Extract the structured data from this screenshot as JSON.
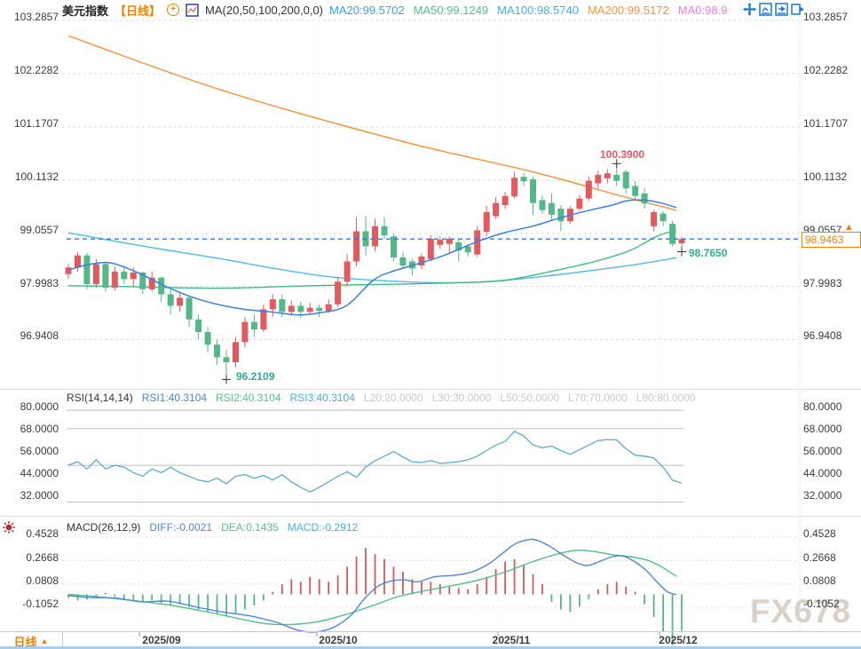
{
  "header": {
    "symbol": "美元指数",
    "period_tag": "【日线】",
    "ma_settings": "MA(20,50,100,200,0,0)",
    "ma_values": [
      {
        "text": "MA20:99.5702",
        "color": "#3ba0e8"
      },
      {
        "text": "MA50:99.1249",
        "color": "#52c48b"
      },
      {
        "text": "MA100:98.5740",
        "color": "#3fb3e3"
      },
      {
        "text": "MA200:99.5172",
        "color": "#f6953e"
      },
      {
        "text": "MA0:98.9",
        "color": "#ee7ce4"
      }
    ],
    "toolbar_icons": [
      "move-crosshair-icon",
      "zoom-in-range-icon",
      "zoom-out-range-icon",
      "reset-view-icon"
    ]
  },
  "main_axis": {
    "labels": [
      "103.2857",
      "102.2282",
      "101.1707",
      "100.1132",
      "99.0557",
      "97.9983",
      "96.9408"
    ]
  },
  "price_markers": {
    "high_label": "100.3900",
    "low_label": "96.2109",
    "last_low_label": "98.7650",
    "current_price": "98.9463"
  },
  "rsi_panel": {
    "title": "RSI(14,14,14)",
    "values": [
      {
        "text": "RSI1:40.3104",
        "color": "#4a86e0"
      },
      {
        "text": "RSI2:40.3104",
        "color": "#52c48b"
      },
      {
        "text": "RSI3:40.3104",
        "color": "#3fb3e3"
      },
      {
        "text": "L20:20.0000",
        "color": "#c9c9ce"
      },
      {
        "text": "L30:30.0000",
        "color": "#c9c9ce"
      },
      {
        "text": "L50:50.0000",
        "color": "#c9c9ce"
      },
      {
        "text": "L70:70.0000",
        "color": "#c9c9ce"
      },
      {
        "text": "L80:80.0000",
        "color": "#c9c9ce"
      }
    ],
    "axis_labels": [
      "80.0000",
      "68.0000",
      "56.0000",
      "44.0000",
      "32.0000"
    ]
  },
  "macd_panel": {
    "title": "MACD(26,12,9)",
    "values": [
      {
        "text": "DIFF:-0.0021",
        "color": "#4a86e0"
      },
      {
        "text": "DEA:0.1435",
        "color": "#52c48b"
      },
      {
        "text": "MACD:-0.2912",
        "color": "#3fb3e3"
      }
    ],
    "axis_labels": [
      "0.4528",
      "0.2668",
      "0.0808",
      "-0.1052"
    ]
  },
  "x_axis": {
    "labels": [
      "2025/09",
      "2025/10",
      "2025/11",
      "2025/12"
    ]
  },
  "bottom_tab": {
    "label": "日线",
    "arrow": "▲"
  },
  "watermark": "FX678",
  "colors": {
    "up": "#e25a5e",
    "down": "#54b886",
    "ma20": "#3e7fd9",
    "ma50": "#3dba85",
    "ma100": "#52b9e9",
    "ma200": "#f6953e",
    "current_line": "#2a7de1",
    "rsi_line": "#5aabd2",
    "diff_line": "#4f86d8",
    "dea_line": "#4fbd8c",
    "hist_up": "#d9565a",
    "hist_down": "#55b987",
    "accent_orange": "#f08200"
  },
  "chart_data": {
    "type": "candlestick",
    "title": "美元指数 日线 (US Dollar Index, daily)",
    "x_ticks": [
      "2025/09",
      "2025/10",
      "2025/11",
      "2025/12"
    ],
    "price_axis_ticks": [
      103.2857,
      102.2282,
      101.1707,
      100.1132,
      99.0557,
      97.9983,
      96.9408
    ],
    "price_range_shown": [
      96.2109,
      103.2857
    ],
    "high": 100.39,
    "low": 96.2109,
    "last_close": 98.9463,
    "last_low": 98.765,
    "high_index": 59,
    "low_index": 17,
    "candles_ohlc": [
      [
        98.25,
        98.45,
        98.15,
        98.38
      ],
      [
        98.38,
        98.68,
        98.3,
        98.62
      ],
      [
        98.62,
        98.67,
        97.95,
        98.05
      ],
      [
        98.05,
        98.55,
        97.98,
        98.45
      ],
      [
        98.45,
        98.5,
        97.9,
        97.98
      ],
      [
        97.98,
        98.4,
        97.92,
        98.3
      ],
      [
        98.3,
        98.42,
        98.05,
        98.15
      ],
      [
        98.15,
        98.38,
        98.0,
        98.28
      ],
      [
        98.28,
        98.3,
        97.85,
        97.95
      ],
      [
        97.95,
        98.3,
        97.9,
        98.18
      ],
      [
        98.18,
        98.2,
        97.7,
        97.85
      ],
      [
        97.85,
        97.95,
        97.45,
        97.62
      ],
      [
        97.62,
        97.9,
        97.5,
        97.78
      ],
      [
        97.78,
        97.8,
        97.2,
        97.35
      ],
      [
        97.35,
        97.45,
        96.95,
        97.1
      ],
      [
        97.1,
        97.2,
        96.7,
        96.85
      ],
      [
        96.85,
        96.95,
        96.45,
        96.6
      ],
      [
        96.6,
        96.75,
        96.2109,
        96.5
      ],
      [
        96.5,
        97.0,
        96.4,
        96.9
      ],
      [
        96.9,
        97.4,
        96.8,
        97.3
      ],
      [
        97.3,
        97.45,
        97.0,
        97.15
      ],
      [
        97.15,
        97.65,
        97.1,
        97.55
      ],
      [
        97.55,
        97.85,
        97.4,
        97.75
      ],
      [
        97.75,
        97.85,
        97.4,
        97.5
      ],
      [
        97.5,
        97.72,
        97.42,
        97.62
      ],
      [
        97.62,
        97.7,
        97.38,
        97.5
      ],
      [
        97.5,
        97.68,
        97.45,
        97.58
      ],
      [
        97.58,
        97.64,
        97.4,
        97.52
      ],
      [
        97.52,
        97.75,
        97.48,
        97.65
      ],
      [
        97.65,
        98.2,
        97.6,
        98.1
      ],
      [
        98.1,
        98.65,
        98.0,
        98.5
      ],
      [
        98.5,
        99.38,
        98.4,
        99.1
      ],
      [
        99.1,
        99.4,
        98.62,
        98.8
      ],
      [
        98.8,
        99.35,
        98.7,
        99.2
      ],
      [
        99.2,
        99.38,
        98.95,
        99.02
      ],
      [
        99.0,
        99.05,
        98.5,
        98.58
      ],
      [
        98.58,
        98.68,
        98.35,
        98.42
      ],
      [
        98.5,
        98.55,
        98.22,
        98.36
      ],
      [
        98.42,
        98.66,
        98.35,
        98.6
      ],
      [
        98.55,
        99.02,
        98.5,
        98.95
      ],
      [
        98.83,
        99.0,
        98.75,
        98.93
      ],
      [
        98.85,
        99.0,
        98.68,
        98.95
      ],
      [
        98.88,
        98.95,
        98.5,
        98.72
      ],
      [
        98.8,
        98.85,
        98.6,
        98.68
      ],
      [
        98.64,
        99.2,
        98.6,
        99.12
      ],
      [
        99.09,
        99.6,
        99.0,
        99.48
      ],
      [
        99.4,
        99.78,
        99.35,
        99.66
      ],
      [
        99.62,
        99.88,
        99.55,
        99.8
      ],
      [
        99.79,
        100.28,
        99.75,
        100.16
      ],
      [
        100.18,
        100.26,
        100.0,
        100.09
      ],
      [
        100.13,
        100.18,
        99.43,
        99.66
      ],
      [
        99.72,
        99.8,
        99.45,
        99.52
      ],
      [
        99.66,
        99.85,
        99.3,
        99.43
      ],
      [
        99.55,
        99.62,
        99.1,
        99.3
      ],
      [
        99.3,
        99.6,
        99.25,
        99.55
      ],
      [
        99.55,
        99.82,
        99.5,
        99.75
      ],
      [
        99.75,
        100.18,
        99.7,
        100.1
      ],
      [
        100.05,
        100.3,
        99.95,
        100.22
      ],
      [
        100.15,
        100.33,
        100.05,
        100.25
      ],
      [
        100.22,
        100.39,
        100.0,
        100.1
      ],
      [
        100.28,
        100.32,
        99.85,
        99.95
      ],
      [
        100.0,
        100.1,
        99.7,
        99.8
      ],
      [
        99.85,
        99.95,
        99.55,
        99.65
      ],
      [
        99.2,
        99.52,
        99.1,
        99.48
      ],
      [
        99.45,
        99.5,
        99.2,
        99.3
      ],
      [
        99.25,
        99.3,
        98.8,
        98.85
      ],
      [
        98.86,
        98.99,
        98.765,
        98.9463
      ]
    ],
    "ma20_points": [
      [
        77,
        98.33
      ],
      [
        100,
        98.44
      ],
      [
        125,
        98.47
      ],
      [
        155,
        98.28
      ],
      [
        185,
        98.02
      ],
      [
        215,
        97.8
      ],
      [
        245,
        97.65
      ],
      [
        275,
        97.55
      ],
      [
        305,
        97.5
      ],
      [
        335,
        97.44
      ],
      [
        360,
        97.48
      ],
      [
        390,
        97.62
      ],
      [
        420,
        98.12
      ],
      [
        440,
        98.29
      ],
      [
        470,
        98.45
      ],
      [
        500,
        98.62
      ],
      [
        540,
        98.91
      ],
      [
        570,
        99.08
      ],
      [
        600,
        99.2
      ],
      [
        630,
        99.36
      ],
      [
        660,
        99.5
      ],
      [
        690,
        99.62
      ],
      [
        705,
        99.7
      ],
      [
        725,
        99.72
      ],
      [
        745,
        99.66
      ],
      [
        762,
        99.5702
      ]
    ],
    "ma50_points": [
      [
        77,
        98.02
      ],
      [
        150,
        98.0
      ],
      [
        250,
        97.97
      ],
      [
        350,
        98.02
      ],
      [
        450,
        98.05
      ],
      [
        520,
        98.08
      ],
      [
        570,
        98.13
      ],
      [
        620,
        98.3
      ],
      [
        670,
        98.5
      ],
      [
        710,
        98.72
      ],
      [
        740,
        99.0
      ],
      [
        762,
        99.1249
      ]
    ],
    "ma100_points": [
      [
        77,
        99.07
      ],
      [
        130,
        98.9
      ],
      [
        190,
        98.72
      ],
      [
        250,
        98.55
      ],
      [
        310,
        98.36
      ],
      [
        370,
        98.2
      ],
      [
        430,
        98.12
      ],
      [
        490,
        98.08
      ],
      [
        550,
        98.1
      ],
      [
        610,
        98.2
      ],
      [
        670,
        98.33
      ],
      [
        720,
        98.45
      ],
      [
        762,
        98.574
      ]
    ],
    "ma200_points": [
      [
        77,
        102.98
      ],
      [
        250,
        101.9
      ],
      [
        450,
        100.9
      ],
      [
        600,
        100.28
      ],
      [
        700,
        99.8
      ],
      [
        762,
        99.5172
      ]
    ],
    "rsi": {
      "axis_ticks": [
        80,
        68,
        56,
        44,
        32
      ],
      "level_lines": [
        80,
        70,
        50,
        30
      ],
      "last_value": 40.3104,
      "values": [
        50,
        52,
        48,
        53,
        48,
        50,
        49,
        46,
        44,
        48,
        46,
        49,
        46,
        44,
        42,
        41,
        43,
        40,
        44,
        45,
        43,
        44.5,
        42,
        45,
        41,
        38,
        35.5,
        38,
        41,
        44,
        46.5,
        43.5,
        49,
        52.5,
        55,
        57.5,
        54.5,
        52,
        51.5,
        52.5,
        51,
        51.5,
        52,
        53,
        55,
        58,
        61,
        63,
        68.5,
        66,
        61,
        59.5,
        60.5,
        58,
        56,
        58.5,
        61,
        63.5,
        64,
        63.8,
        59,
        55.5,
        55,
        54,
        49,
        42,
        40.3
      ]
    },
    "macd": {
      "axis_ticks": [
        0.4528,
        0.2668,
        0.0808,
        -0.1052
      ],
      "diff_last": -0.0021,
      "dea_last": 0.1435,
      "macd_last": -0.2912,
      "hist": [
        -0.03,
        -0.05,
        -0.04,
        -0.02,
        0.01,
        -0.02,
        -0.04,
        -0.05,
        -0.06,
        -0.05,
        -0.07,
        -0.09,
        -0.08,
        -0.1,
        -0.12,
        -0.14,
        -0.16,
        -0.17,
        -0.15,
        -0.12,
        -0.09,
        -0.05,
        0.02,
        0.08,
        0.12,
        0.1,
        0.14,
        0.12,
        0.1,
        0.15,
        0.22,
        0.3,
        0.37,
        0.32,
        0.28,
        0.22,
        0.18,
        0.12,
        0.1,
        0.1,
        0.08,
        0.06,
        0.05,
        0.04,
        0.08,
        0.14,
        0.2,
        0.26,
        0.28,
        0.24,
        0.16,
        0.08,
        -0.06,
        -0.12,
        -0.14,
        -0.1,
        -0.04,
        0.04,
        0.08,
        0.1,
        0.06,
        0.02,
        -0.08,
        -0.18,
        -0.3,
        -0.42,
        -0.2912
      ],
      "diff_points": [
        [
          77,
          -0.01
        ],
        [
          100,
          -0.025
        ],
        [
          130,
          -0.03
        ],
        [
          160,
          -0.06
        ],
        [
          190,
          -0.055
        ],
        [
          220,
          -0.1
        ],
        [
          250,
          -0.14
        ],
        [
          280,
          -0.17
        ],
        [
          310,
          -0.22
        ],
        [
          335,
          -0.285
        ],
        [
          355,
          -0.3
        ],
        [
          375,
          -0.265
        ],
        [
          395,
          -0.17
        ],
        [
          410,
          -0.04
        ],
        [
          425,
          0.06
        ],
        [
          440,
          0.105
        ],
        [
          455,
          0.115
        ],
        [
          470,
          0.1
        ],
        [
          490,
          0.14
        ],
        [
          510,
          0.15
        ],
        [
          530,
          0.175
        ],
        [
          550,
          0.24
        ],
        [
          565,
          0.32
        ],
        [
          580,
          0.4
        ],
        [
          595,
          0.435
        ],
        [
          605,
          0.43
        ],
        [
          620,
          0.38
        ],
        [
          635,
          0.31
        ],
        [
          650,
          0.25
        ],
        [
          662,
          0.23
        ],
        [
          675,
          0.26
        ],
        [
          690,
          0.3
        ],
        [
          702,
          0.305
        ],
        [
          715,
          0.26
        ],
        [
          728,
          0.19
        ],
        [
          740,
          0.1
        ],
        [
          752,
          0.02
        ],
        [
          762,
          -0.002
        ]
      ],
      "dea_points": [
        [
          77,
          0.0
        ],
        [
          110,
          -0.02
        ],
        [
          150,
          -0.05
        ],
        [
          190,
          -0.085
        ],
        [
          230,
          -0.135
        ],
        [
          270,
          -0.195
        ],
        [
          300,
          -0.235
        ],
        [
          330,
          -0.24
        ],
        [
          360,
          -0.215
        ],
        [
          390,
          -0.16
        ],
        [
          420,
          -0.09
        ],
        [
          450,
          -0.015
        ],
        [
          480,
          0.03
        ],
        [
          510,
          0.07
        ],
        [
          540,
          0.115
        ],
        [
          570,
          0.18
        ],
        [
          600,
          0.26
        ],
        [
          630,
          0.325
        ],
        [
          650,
          0.35
        ],
        [
          670,
          0.34
        ],
        [
          690,
          0.315
        ],
        [
          710,
          0.3
        ],
        [
          730,
          0.27
        ],
        [
          745,
          0.22
        ],
        [
          762,
          0.1435
        ]
      ]
    }
  }
}
